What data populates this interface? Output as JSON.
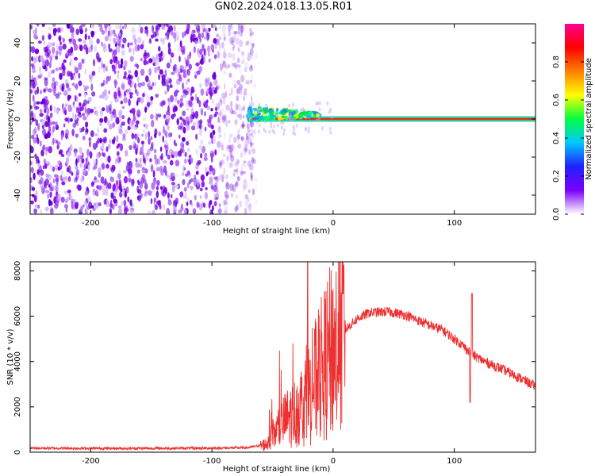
{
  "title": "GN02.2024.018.13.05.R01",
  "chart_data": [
    {
      "type": "heatmap",
      "xlabel": "Height of straight line (km)",
      "ylabel": "Frequency (Hz)",
      "xlim": [
        -250,
        167
      ],
      "ylim": [
        -50,
        50
      ],
      "xticks": [
        -200,
        -100,
        0,
        100
      ],
      "yticks": [
        -40,
        -20,
        0,
        20,
        40
      ],
      "colorbar": {
        "label": "Normalized spectral amplitude",
        "range": [
          0,
          1
        ],
        "ticks": [
          "0.0",
          "0.2",
          "0.4",
          "0.6",
          "0.8"
        ],
        "colors": [
          "#ffffff",
          "#7b00ff",
          "#2020ff",
          "#00c8ff",
          "#00ff40",
          "#ffff00",
          "#ff8000",
          "#ff0000",
          "#ff0090"
        ]
      },
      "features": [
        {
          "region": "noise",
          "x_range": [
            -250,
            -70
          ],
          "freq_range": [
            -50,
            50
          ],
          "amplitude": "low (0.0-0.2)"
        },
        {
          "region": "carrier",
          "x_range": [
            -70,
            167
          ],
          "freq": 0,
          "amplitude": "high (1.0)"
        }
      ],
      "grid": false
    },
    {
      "type": "line",
      "xlabel": "Height of straight line (km)",
      "ylabel": "SNR (10 * v/v)",
      "xlim": [
        -250,
        167
      ],
      "ylim": [
        0,
        8400
      ],
      "xticks": [
        -200,
        -100,
        0,
        100
      ],
      "yticks": [
        0,
        2000,
        4000,
        6000,
        8000
      ],
      "color": "#ee3030",
      "x": [
        -250,
        -200,
        -150,
        -100,
        -70,
        -55,
        -40,
        -30,
        -20,
        -10,
        0,
        10,
        20,
        30,
        45,
        60,
        75,
        90,
        105,
        110,
        115,
        125,
        140,
        155,
        167
      ],
      "y": [
        180,
        170,
        170,
        180,
        200,
        350,
        1400,
        1800,
        2600,
        3600,
        4600,
        5400,
        5900,
        6150,
        6200,
        6050,
        5700,
        5400,
        4800,
        4550,
        4300,
        4000,
        3650,
        3250,
        2900
      ],
      "grid": false
    }
  ]
}
